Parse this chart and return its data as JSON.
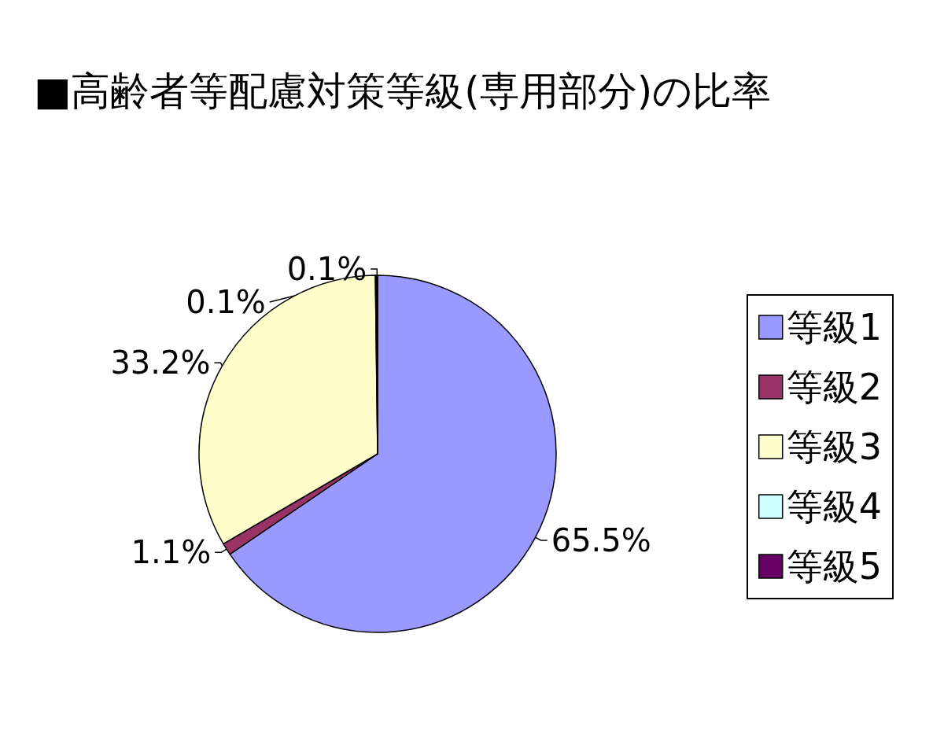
{
  "chart_data": {
    "type": "pie",
    "title": "■高齢者等配慮対策等級(専用部分)の比率",
    "categories": [
      "等級1",
      "等級2",
      "等級3",
      "等級4",
      "等級5"
    ],
    "values": [
      65.5,
      1.1,
      33.2,
      0.1,
      0.1
    ],
    "colors": [
      "#9999ff",
      "#993366",
      "#ffffcc",
      "#ccffff",
      "#660066"
    ],
    "value_labels": [
      "65.5%",
      "1.1%",
      "33.2%",
      "0.1%",
      "0.1%"
    ],
    "legend": "right"
  }
}
